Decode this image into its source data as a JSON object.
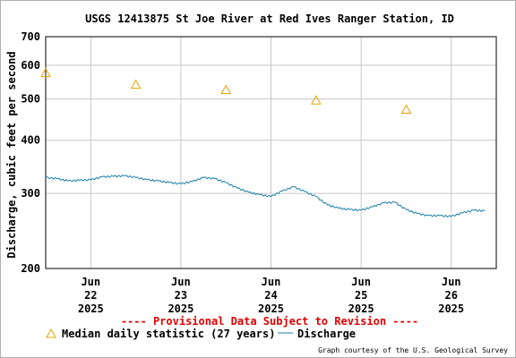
{
  "chart_data": {
    "type": "line",
    "title": "USGS 12413875 St Joe River at Red Ives Ranger Station, ID",
    "ylabel": "Discharge, cubic feet per second",
    "y_scale": "log",
    "ylim": [
      200,
      700
    ],
    "y_ticks": [
      200,
      300,
      400,
      500,
      600,
      700
    ],
    "x_ticks": [
      {
        "month": "Jun",
        "day": "22",
        "year": "2025"
      },
      {
        "month": "Jun",
        "day": "23",
        "year": "2025"
      },
      {
        "month": "Jun",
        "day": "24",
        "year": "2025"
      },
      {
        "month": "Jun",
        "day": "25",
        "year": "2025"
      },
      {
        "month": "Jun",
        "day": "26",
        "year": "2025"
      }
    ],
    "grid": true,
    "discharge_series": {
      "name": "Discharge",
      "color": "#1a7fa6",
      "points": [
        [
          "2025-06-21 12:00",
          327
        ],
        [
          "2025-06-21 15:00",
          325
        ],
        [
          "2025-06-21 18:00",
          321
        ],
        [
          "2025-06-21 21:00",
          322
        ],
        [
          "2025-06-22 00:00",
          323
        ],
        [
          "2025-06-22 03:00",
          328
        ],
        [
          "2025-06-22 06:00",
          329
        ],
        [
          "2025-06-22 09:00",
          330
        ],
        [
          "2025-06-22 12:00",
          327
        ],
        [
          "2025-06-22 15:00",
          323
        ],
        [
          "2025-06-22 18:00",
          321
        ],
        [
          "2025-06-22 21:00",
          318
        ],
        [
          "2025-06-23 00:00",
          316
        ],
        [
          "2025-06-23 03:00",
          320
        ],
        [
          "2025-06-23 06:00",
          327
        ],
        [
          "2025-06-23 09:00",
          325
        ],
        [
          "2025-06-23 12:00",
          318
        ],
        [
          "2025-06-23 15:00",
          309
        ],
        [
          "2025-06-23 18:00",
          302
        ],
        [
          "2025-06-23 21:00",
          298
        ],
        [
          "2025-06-24 00:00",
          295
        ],
        [
          "2025-06-24 03:00",
          304
        ],
        [
          "2025-06-24 06:00",
          311
        ],
        [
          "2025-06-24 09:00",
          303
        ],
        [
          "2025-06-24 12:00",
          295
        ],
        [
          "2025-06-24 15:00",
          282
        ],
        [
          "2025-06-24 18:00",
          277
        ],
        [
          "2025-06-24 21:00",
          275
        ],
        [
          "2025-06-25 00:00",
          274
        ],
        [
          "2025-06-25 03:00",
          279
        ],
        [
          "2025-06-25 06:00",
          285
        ],
        [
          "2025-06-25 09:00",
          286
        ],
        [
          "2025-06-25 12:00",
          275
        ],
        [
          "2025-06-25 15:00",
          269
        ],
        [
          "2025-06-25 18:00",
          266
        ],
        [
          "2025-06-25 21:00",
          266
        ],
        [
          "2025-06-26 00:00",
          265
        ],
        [
          "2025-06-26 03:00",
          270
        ],
        [
          "2025-06-26 06:00",
          274
        ],
        [
          "2025-06-26 09:00",
          273
        ]
      ]
    },
    "median_series": {
      "name": "Median daily statistic (27 years)",
      "color": "#e8a200",
      "points": [
        [
          "2025-06-21 12:00",
          575
        ],
        [
          "2025-06-22 12:00",
          540
        ],
        [
          "2025-06-23 12:00",
          525
        ],
        [
          "2025-06-24 12:00",
          496
        ],
        [
          "2025-06-25 12:00",
          472
        ]
      ]
    }
  },
  "notice": "---- Provisional Data Subject to Revision ----",
  "legend": {
    "median_label": "Median daily statistic (27 years)",
    "discharge_label": "Discharge"
  },
  "credit": "Graph courtesy of the U.S. Geological Survey",
  "colors": {
    "notice": "#e00000",
    "grid": "#c8c8c8",
    "axis": "#000000"
  }
}
